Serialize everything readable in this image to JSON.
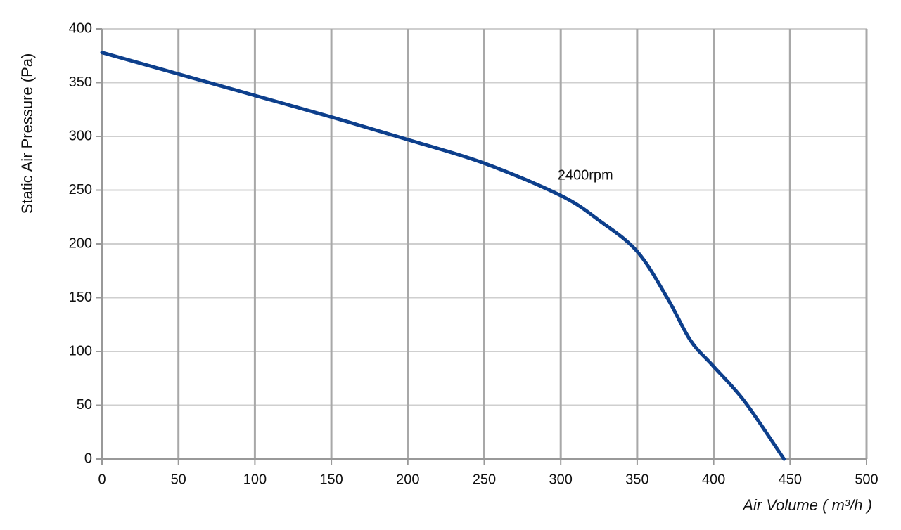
{
  "chart_data": {
    "type": "line",
    "x_label": "Air Volume ( m³/h )",
    "y_label": "Static Air Pressure  (Pa)",
    "x": [
      0,
      50,
      100,
      150,
      200,
      250,
      300,
      325,
      350,
      370,
      385,
      400,
      420,
      446
    ],
    "series": [
      {
        "name": "2400rpm",
        "color": "#0d3f8c",
        "values": [
          378,
          358,
          338,
          318,
          297,
          275,
          245,
          222,
          193,
          149,
          110,
          86,
          54,
          0
        ]
      }
    ],
    "xlim": [
      0,
      500
    ],
    "xticks": [
      0,
      50,
      100,
      150,
      200,
      250,
      300,
      350,
      400,
      450,
      500
    ],
    "ylim": [
      0,
      400
    ],
    "yticks": [
      0,
      50,
      100,
      150,
      200,
      250,
      300,
      350,
      400
    ],
    "grid": true
  }
}
